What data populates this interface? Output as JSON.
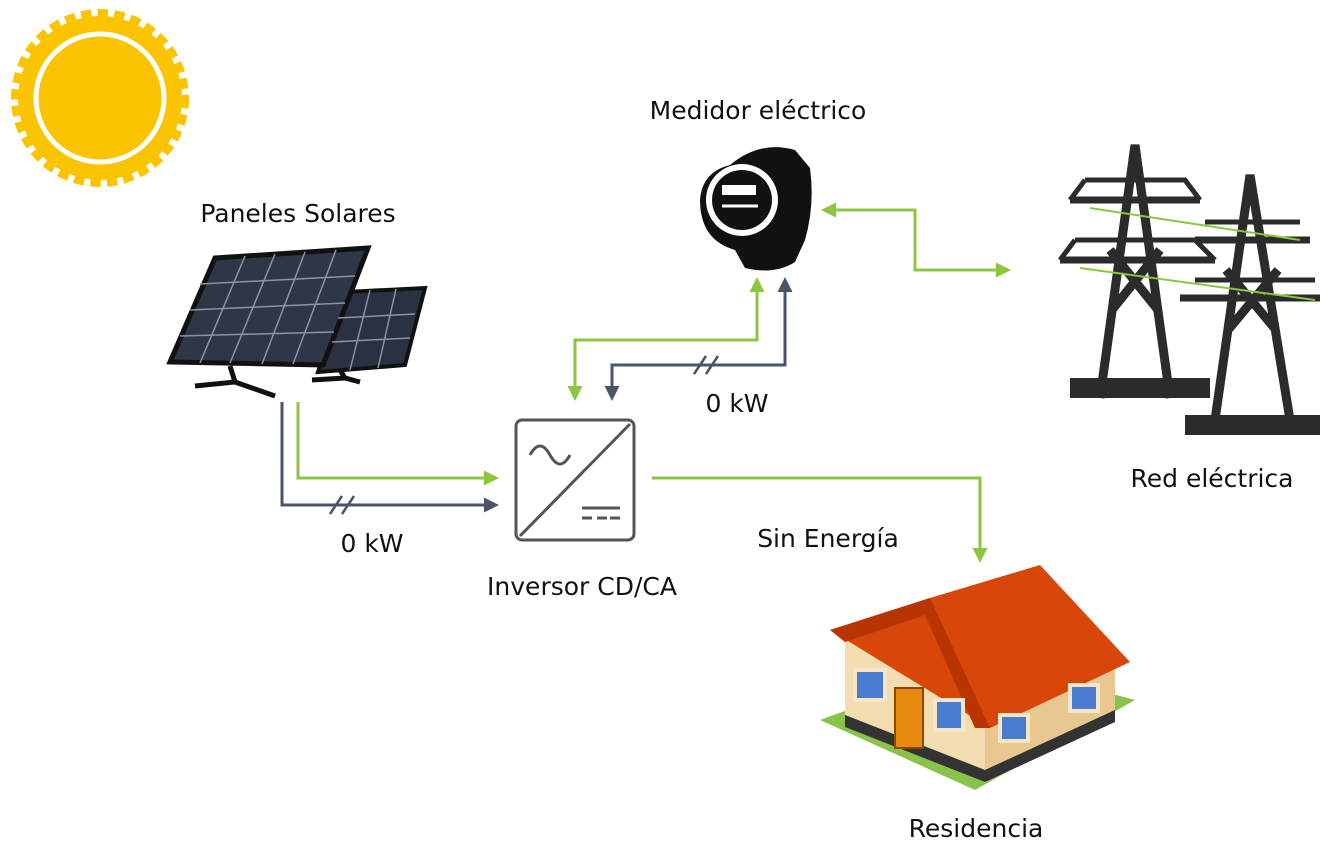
{
  "nodes": [
    {
      "label": "Paneles Solares"
    },
    {
      "label": "Medidor eléctrico"
    },
    {
      "label": "Red eléctrica"
    },
    {
      "label": "Inversor CD/CA"
    },
    {
      "label": "Residencia"
    }
  ],
  "flows": [
    {
      "label": "0 kW"
    },
    {
      "label": "0 kW"
    },
    {
      "label": "Sin Energía"
    }
  ]
}
